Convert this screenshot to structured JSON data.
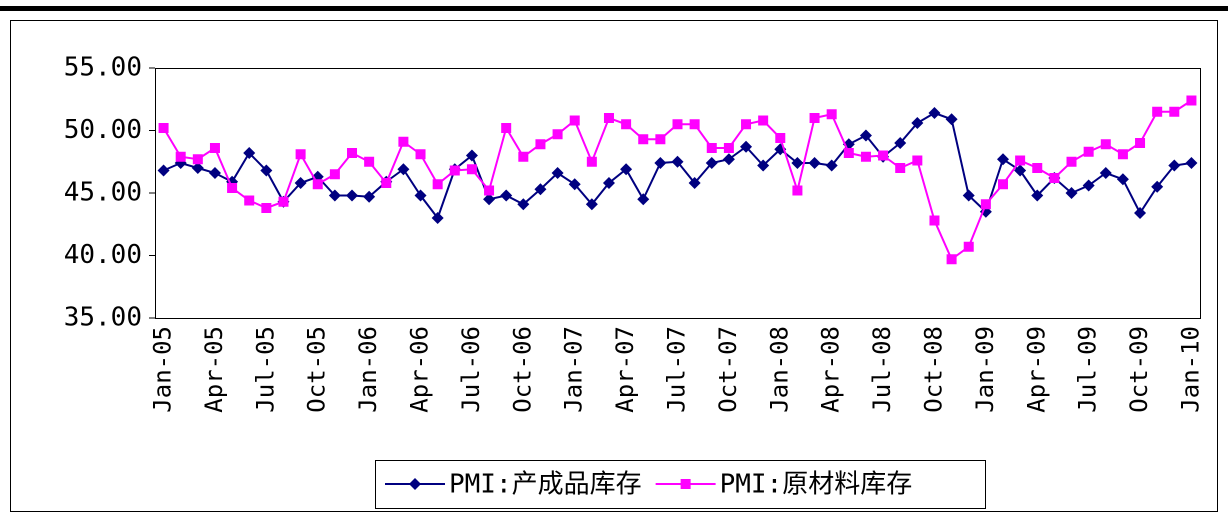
{
  "chart_data": {
    "type": "line",
    "categories": [
      "Jan-05",
      null,
      null,
      "Apr-05",
      null,
      null,
      "Jul-05",
      null,
      null,
      "Oct-05",
      null,
      null,
      "Jan-06",
      null,
      null,
      "Apr-06",
      null,
      null,
      "Jul-06",
      null,
      null,
      "Oct-06",
      null,
      null,
      "Jan-07",
      null,
      null,
      "Apr-07",
      null,
      null,
      "Jul-07",
      null,
      null,
      "Oct-07",
      null,
      null,
      "Jan-08",
      null,
      null,
      "Apr-08",
      null,
      null,
      "Jul-08",
      null,
      null,
      "Oct-08",
      null,
      null,
      "Jan-09",
      null,
      null,
      "Apr-09",
      null,
      null,
      "Jul-09",
      null,
      null,
      "Oct-09",
      null,
      null,
      "Jan-10"
    ],
    "series": [
      {
        "name": "PMI:产成品库存",
        "color": "#000080",
        "marker": "diamond",
        "values": [
          46.8,
          47.4,
          47.0,
          46.6,
          45.9,
          48.2,
          46.8,
          44.3,
          45.8,
          46.3,
          44.8,
          44.8,
          44.7,
          45.9,
          46.9,
          44.8,
          43.0,
          46.9,
          48.0,
          44.5,
          44.8,
          44.1,
          45.3,
          46.6,
          45.7,
          44.1,
          45.8,
          46.9,
          44.5,
          47.4,
          47.5,
          45.8,
          47.4,
          47.7,
          48.7,
          47.2,
          48.5,
          47.4,
          47.4,
          47.2,
          48.9,
          49.6,
          47.9,
          49.0,
          50.6,
          51.4,
          50.9,
          44.8,
          43.5,
          47.7,
          46.8,
          44.8,
          46.2,
          45.0,
          45.6,
          46.6,
          46.1,
          43.4,
          45.5,
          47.2,
          47.4
        ]
      },
      {
        "name": "PMI:原材料库存",
        "color": "#ff00ff",
        "marker": "square",
        "values": [
          50.2,
          47.9,
          47.7,
          48.6,
          45.4,
          44.4,
          43.8,
          44.3,
          48.1,
          45.7,
          46.5,
          48.2,
          47.5,
          45.8,
          49.1,
          48.1,
          45.7,
          46.8,
          46.9,
          45.2,
          50.2,
          47.9,
          48.9,
          49.7,
          50.8,
          47.5,
          51.0,
          50.5,
          49.3,
          49.3,
          50.5,
          50.5,
          48.6,
          48.6,
          50.5,
          50.8,
          49.4,
          45.2,
          51.0,
          51.3,
          48.2,
          47.9,
          48.0,
          47.0,
          47.6,
          42.8,
          39.7,
          40.7,
          44.1,
          45.7,
          47.6,
          47.0,
          46.2,
          47.5,
          48.3,
          48.9,
          48.1,
          49.0,
          51.5,
          51.5,
          52.4
        ]
      }
    ],
    "ylim": [
      35,
      55
    ],
    "yticks": [
      {
        "value": 35,
        "label": "35.00"
      },
      {
        "value": 40,
        "label": "40.00"
      },
      {
        "value": 45,
        "label": "45.00"
      },
      {
        "value": 50,
        "label": "50.00"
      },
      {
        "value": 55,
        "label": "55.00"
      }
    ],
    "grid": false,
    "legend": "bottom"
  }
}
